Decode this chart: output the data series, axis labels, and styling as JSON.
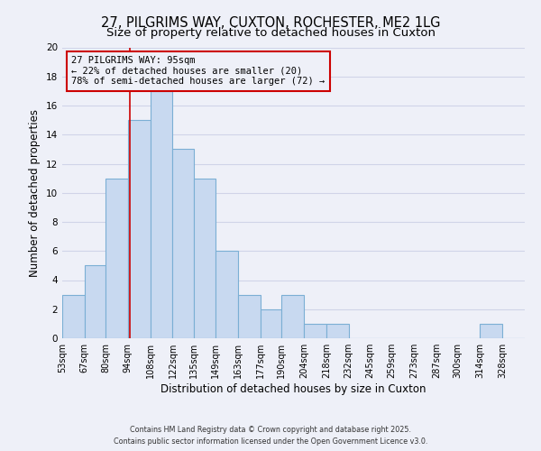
{
  "title1": "27, PILGRIMS WAY, CUXTON, ROCHESTER, ME2 1LG",
  "title2": "Size of property relative to detached houses in Cuxton",
  "xlabel": "Distribution of detached houses by size in Cuxton",
  "ylabel": "Number of detached properties",
  "bin_edges": [
    53,
    67,
    80,
    94,
    108,
    122,
    135,
    149,
    163,
    177,
    190,
    204,
    218,
    232,
    245,
    259,
    273,
    287,
    300,
    314,
    328
  ],
  "bar_heights": [
    3,
    5,
    11,
    15,
    17,
    13,
    11,
    6,
    3,
    2,
    3,
    1,
    1,
    0,
    0,
    0,
    0,
    0,
    0,
    1
  ],
  "bar_color": "#c8d9f0",
  "bar_edge_color": "#7bafd4",
  "vline_x": 95,
  "vline_color": "#cc0000",
  "ylim": [
    0,
    20
  ],
  "annotation_line1": "27 PILGRIMS WAY: 95sqm",
  "annotation_line2": "← 22% of detached houses are smaller (20)",
  "annotation_line3": "78% of semi-detached houses are larger (72) →",
  "annotation_box_edge": "#cc0000",
  "footer1": "Contains HM Land Registry data © Crown copyright and database right 2025.",
  "footer2": "Contains public sector information licensed under the Open Government Licence v3.0.",
  "background_color": "#eef0f8",
  "grid_color": "#d0d4e8",
  "title_fontsize": 10.5,
  "subtitle_fontsize": 9.5,
  "tick_label_fontsize": 7,
  "ylabel_fontsize": 8.5,
  "xlabel_fontsize": 8.5,
  "footer_fontsize": 5.8,
  "annotation_fontsize": 7.5,
  "yticks": [
    0,
    2,
    4,
    6,
    8,
    10,
    12,
    14,
    16,
    18,
    20
  ]
}
